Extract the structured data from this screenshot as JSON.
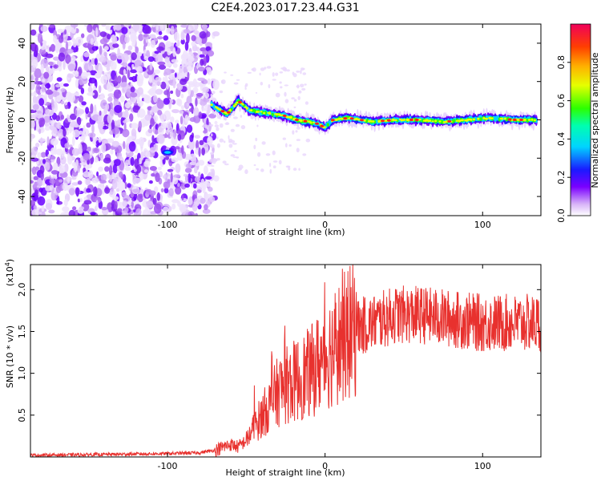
{
  "title": "C2E4.2023.017.23.44.G31",
  "chart_data": [
    {
      "type": "heatmap",
      "xlabel": "Height of straight line (km)",
      "ylabel": "Frequency (Hz)",
      "xlim": [
        -187,
        137
      ],
      "ylim": [
        -50,
        50
      ],
      "x_ticks": [
        -100,
        0,
        100
      ],
      "y_ticks": [
        -40,
        -20,
        0,
        20,
        40
      ],
      "colorbar": {
        "label": "Normalized spectral amplitude",
        "range": [
          0,
          1
        ],
        "ticks": [
          "0.0",
          "0.2",
          "0.4",
          "0.6",
          "0.8"
        ]
      },
      "noise_region_x": [
        -187,
        -73
      ],
      "ridge": {
        "x": [
          -72,
          -62,
          -55,
          -48,
          -40,
          -33,
          -25,
          -18,
          -10,
          -5,
          0,
          5,
          15,
          30,
          45,
          60,
          75,
          90,
          105,
          120,
          135
        ],
        "freq": [
          8,
          3,
          10,
          5,
          4,
          3,
          2,
          0,
          -1,
          -2,
          -4,
          0,
          1,
          -1,
          0,
          0,
          -1,
          0,
          1,
          0,
          0
        ]
      },
      "isolated_feature": {
        "x": -100,
        "freq": -17
      }
    },
    {
      "type": "line",
      "xlabel": "Height of straight line (km)",
      "ylabel": "SNR (10 * v/v)",
      "y_scale_label": "(x10",
      "y_scale_exp": "4",
      "xlim": [
        -187,
        137
      ],
      "ylim": [
        0,
        2.3
      ],
      "x_ticks": [
        -100,
        0,
        100
      ],
      "y_ticks": [
        "0.5",
        "1.0",
        "1.5",
        "2.0"
      ],
      "color": "#e8312e",
      "series": [
        {
          "x": [
            -187,
            -140,
            -100,
            -80,
            -70,
            -60,
            -55,
            -50,
            -45,
            -40,
            -35,
            -30,
            -25,
            -20,
            -15,
            -10,
            -5,
            0,
            10,
            20,
            30,
            45,
            60,
            80,
            100,
            120,
            137
          ],
          "y": [
            0.02,
            0.03,
            0.04,
            0.05,
            0.08,
            0.15,
            0.12,
            0.2,
            0.35,
            0.5,
            0.62,
            0.78,
            0.85,
            0.9,
            0.95,
            1.0,
            1.1,
            1.2,
            1.4,
            1.55,
            1.6,
            1.7,
            1.7,
            1.65,
            1.6,
            1.6,
            1.6
          ]
        }
      ]
    }
  ]
}
